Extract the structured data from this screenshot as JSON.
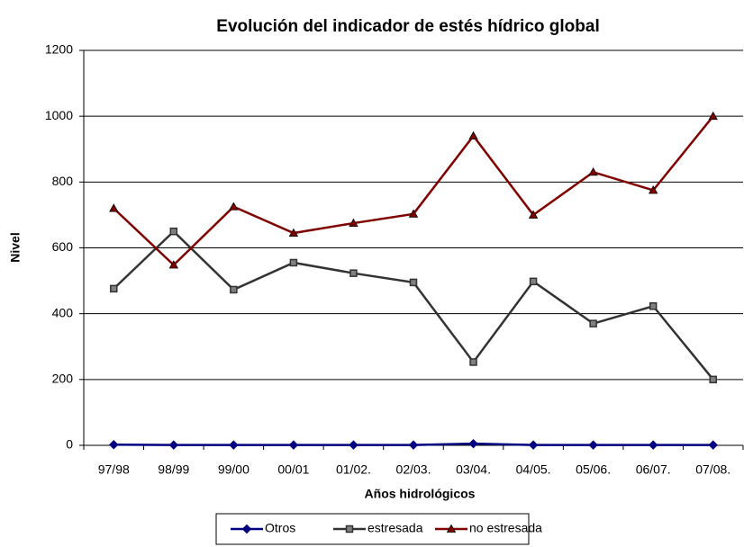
{
  "chart_data": {
    "type": "line",
    "title": "Evolución del indicador de estés hídrico global",
    "xlabel": "Años hidrológicos",
    "ylabel": "Nivel",
    "categories": [
      "97/98",
      "98/99",
      "99/00",
      "00/01",
      "01/02.",
      "02/03.",
      "03/04.",
      "04/05.",
      "05/06.",
      "06/07.",
      "07/08."
    ],
    "series": [
      {
        "name": "Otros",
        "color": "#000080",
        "marker": "diamond",
        "values": [
          2,
          1,
          1,
          1,
          1,
          1,
          5,
          1,
          1,
          1,
          1
        ]
      },
      {
        "name": "estresada",
        "color": "#333333",
        "marker": "square",
        "values": [
          476,
          650,
          473,
          555,
          523,
          495,
          253,
          498,
          370,
          423,
          200
        ]
      },
      {
        "name": "no estresada",
        "color": "#800000",
        "marker": "triangle",
        "values": [
          720,
          548,
          725,
          645,
          675,
          703,
          940,
          700,
          830,
          775,
          1000
        ]
      }
    ],
    "ylim": [
      0,
      1200
    ],
    "yticks": [
      0,
      200,
      400,
      600,
      800,
      1000,
      1200
    ],
    "grid": true,
    "legend": "bottom"
  }
}
